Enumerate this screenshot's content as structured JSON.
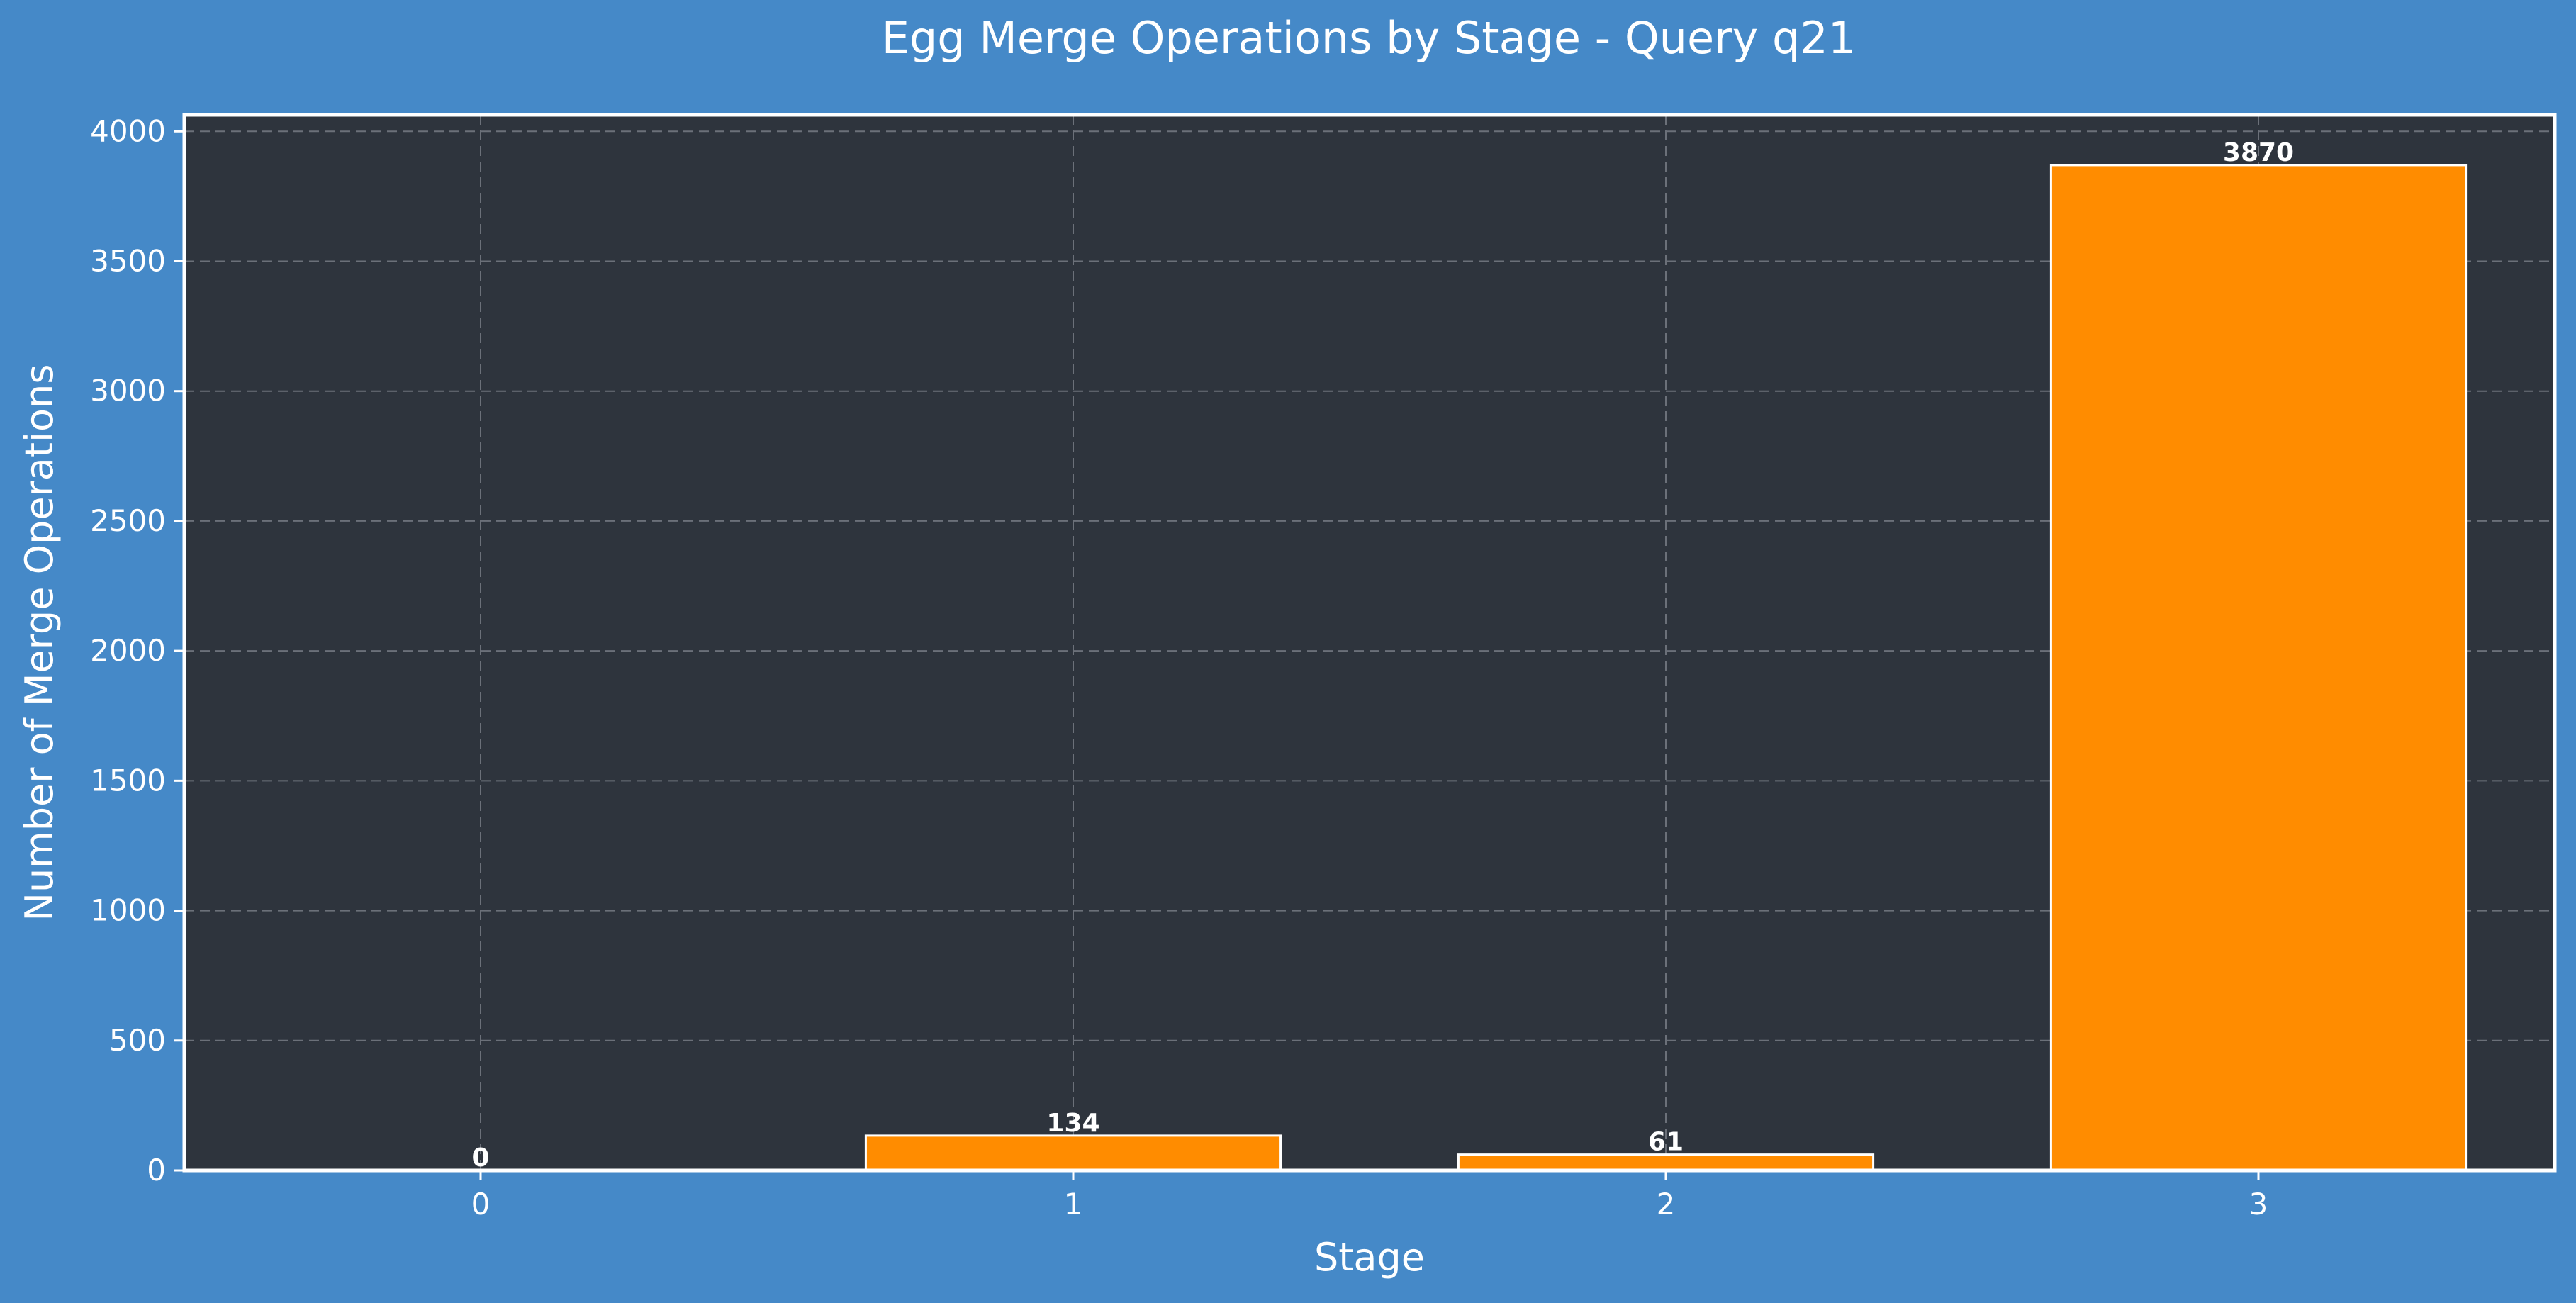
{
  "colors": {
    "background": "#4589c8",
    "plot_background": "#2e343d",
    "bar_fill": "#ff8c00",
    "bar_edge": "#ffffff",
    "grid": "#6b7079",
    "text": "#ffffff"
  },
  "chart_data": {
    "type": "bar",
    "title": "Egg Merge Operations by Stage - Query q21",
    "xlabel": "Stage",
    "ylabel": "Number of Merge Operations",
    "categories": [
      "0",
      "1",
      "2",
      "3"
    ],
    "values": [
      0,
      134,
      61,
      3870
    ],
    "data_labels": [
      "0",
      "134",
      "61",
      "3870"
    ],
    "yticks": [
      0,
      500,
      1000,
      1500,
      2000,
      2500,
      3000,
      3500,
      4000
    ],
    "ytick_labels": [
      "0",
      "500",
      "1000",
      "1500",
      "2000",
      "2500",
      "3000",
      "3500",
      "4000"
    ],
    "ylim": [
      0,
      4063.5
    ],
    "xlim": [
      -0.5,
      3.5
    ],
    "bar_width": 0.7,
    "grid": true,
    "grid_style": "dashed",
    "legend": "none"
  }
}
